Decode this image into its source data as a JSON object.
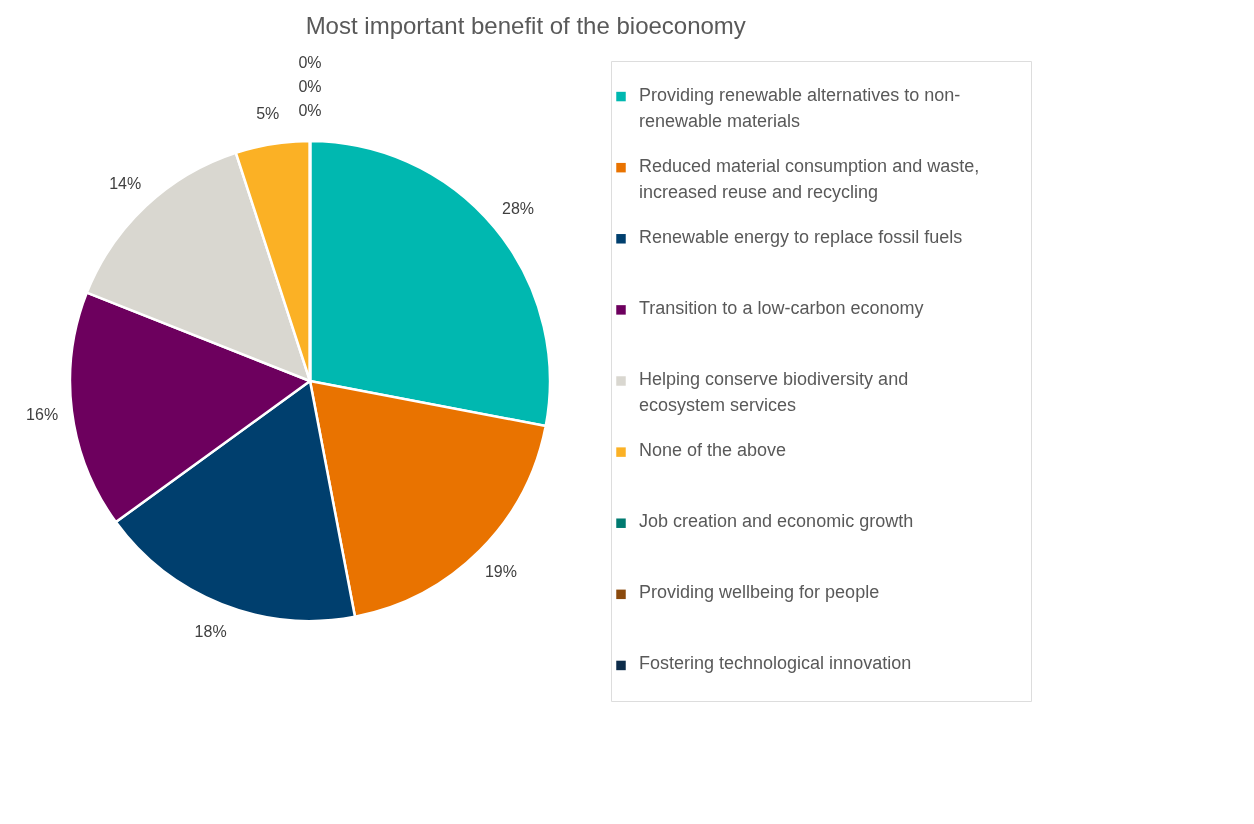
{
  "chart_data": {
    "type": "pie",
    "title": "Most important benefit of the bioeconomy",
    "categories": [
      "Providing renewable alternatives to non-renewable materials",
      "Reduced material consumption and waste, increased reuse and recycling",
      "Renewable energy to replace fossil fuels",
      "Transition to a low-carbon economy",
      "Helping conserve biodiversity and ecosystem services",
      "None of the above",
      "Job creation and economic growth",
      "Providing wellbeing for people",
      "Fostering technological innovation"
    ],
    "values": [
      28,
      19,
      18,
      16,
      14,
      5,
      0,
      0,
      0
    ],
    "colors": [
      "#00b8b0",
      "#e97300",
      "#003f6e",
      "#6d005e",
      "#d9d7d0",
      "#fbb125",
      "#007a70",
      "#8b4a0d",
      "#0d2c4a"
    ],
    "value_labels": [
      "28%",
      "19%",
      "18%",
      "16%",
      "14%",
      "5%",
      "0%",
      "0%",
      "0%"
    ],
    "legend": "right"
  }
}
